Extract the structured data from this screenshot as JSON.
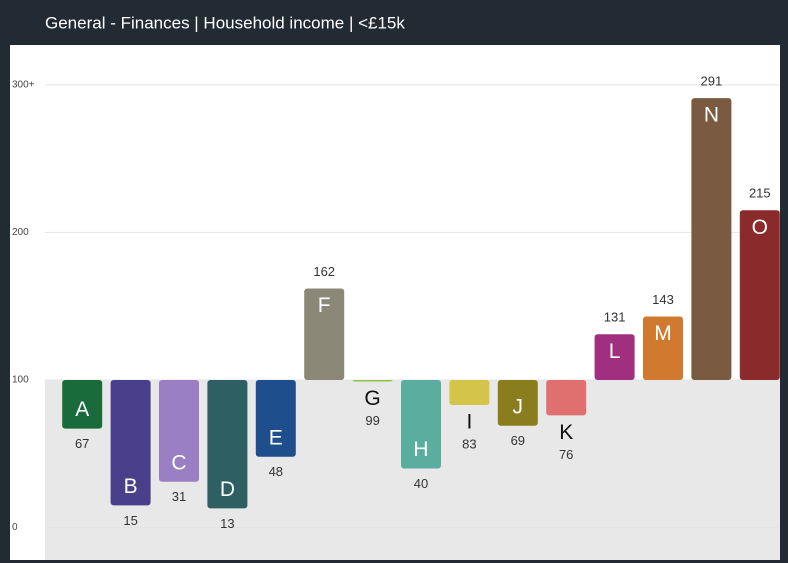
{
  "chart_data": {
    "type": "bar",
    "title": "General - Finances | Household income | <£15k",
    "categories": [
      "A",
      "B",
      "C",
      "D",
      "E",
      "F",
      "G",
      "H",
      "I",
      "J",
      "K",
      "L",
      "M",
      "N",
      "O"
    ],
    "values": [
      67,
      15,
      31,
      13,
      48,
      162,
      99,
      40,
      83,
      69,
      76,
      131,
      143,
      291,
      215
    ],
    "colors": [
      "#1a6b3c",
      "#4a3f8a",
      "#9b7fc4",
      "#2d5f63",
      "#1f4e8c",
      "#8c8878",
      "#8cc63f",
      "#5aaea0",
      "#d4c44a",
      "#8a7d1e",
      "#e07070",
      "#a0307f",
      "#d07a30",
      "#7a5a40",
      "#8a2a2a"
    ],
    "baseline": 100,
    "ylim": [
      -22,
      327
    ],
    "yticks": [
      0,
      100,
      200,
      {
        "value": 300,
        "label": "300+"
      }
    ],
    "grid": true
  }
}
